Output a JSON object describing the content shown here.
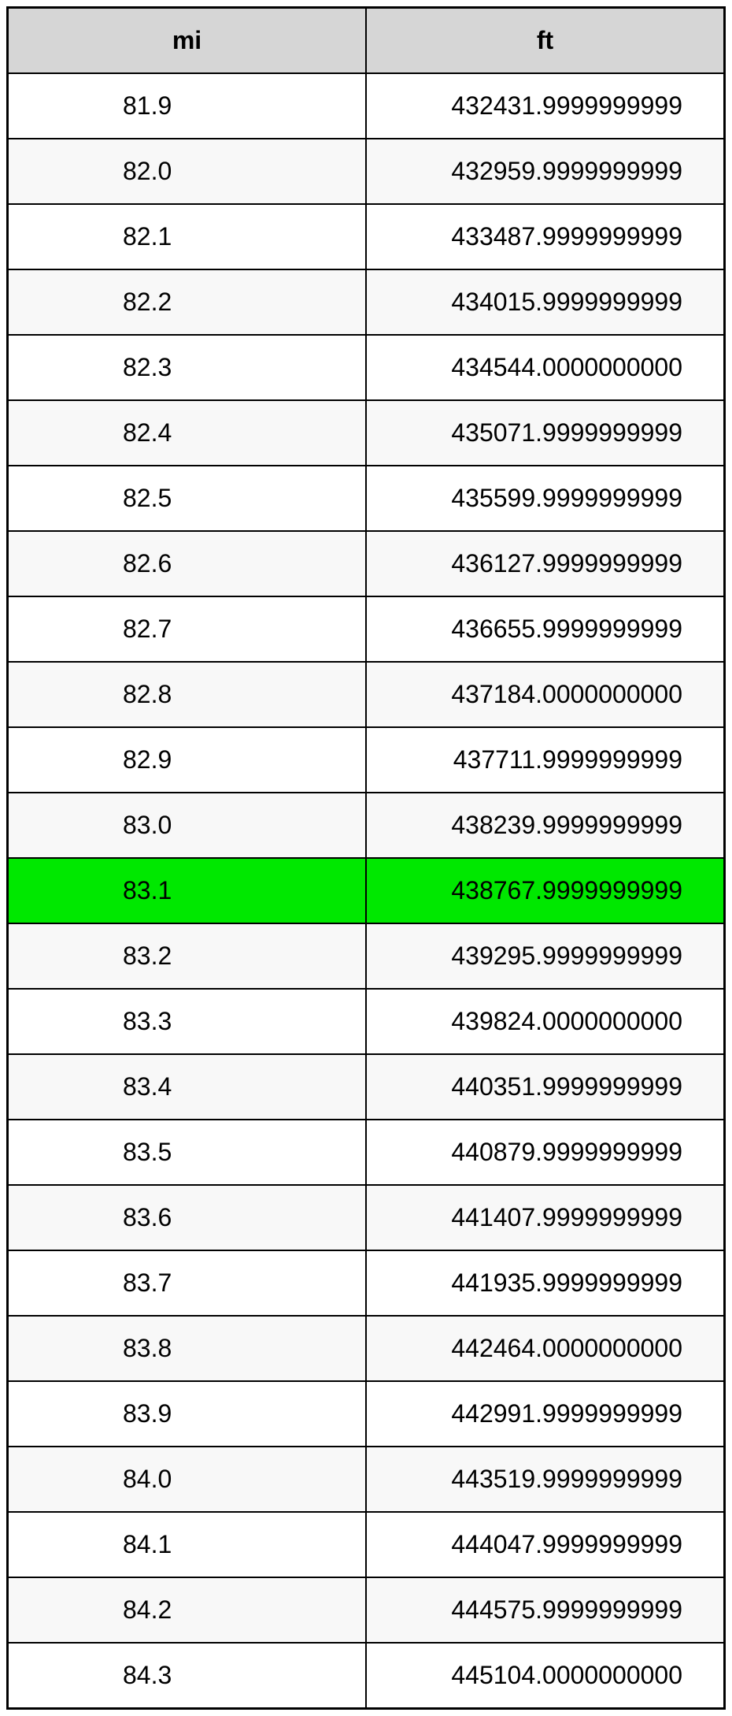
{
  "table": {
    "type": "table",
    "columns": [
      {
        "label": "mi",
        "align": "left",
        "class": "mi"
      },
      {
        "label": "ft",
        "align": "right",
        "class": "ft"
      }
    ],
    "rows": [
      {
        "mi": "81.9",
        "ft": "432431.9999999999",
        "highlight": false
      },
      {
        "mi": "82.0",
        "ft": "432959.9999999999",
        "highlight": false
      },
      {
        "mi": "82.1",
        "ft": "433487.9999999999",
        "highlight": false
      },
      {
        "mi": "82.2",
        "ft": "434015.9999999999",
        "highlight": false
      },
      {
        "mi": "82.3",
        "ft": "434544.0000000000",
        "highlight": false
      },
      {
        "mi": "82.4",
        "ft": "435071.9999999999",
        "highlight": false
      },
      {
        "mi": "82.5",
        "ft": "435599.9999999999",
        "highlight": false
      },
      {
        "mi": "82.6",
        "ft": "436127.9999999999",
        "highlight": false
      },
      {
        "mi": "82.7",
        "ft": "436655.9999999999",
        "highlight": false
      },
      {
        "mi": "82.8",
        "ft": "437184.0000000000",
        "highlight": false
      },
      {
        "mi": "82.9",
        "ft": "437711.9999999999",
        "highlight": false
      },
      {
        "mi": "83.0",
        "ft": "438239.9999999999",
        "highlight": false
      },
      {
        "mi": "83.1",
        "ft": "438767.9999999999",
        "highlight": true
      },
      {
        "mi": "83.2",
        "ft": "439295.9999999999",
        "highlight": false
      },
      {
        "mi": "83.3",
        "ft": "439824.0000000000",
        "highlight": false
      },
      {
        "mi": "83.4",
        "ft": "440351.9999999999",
        "highlight": false
      },
      {
        "mi": "83.5",
        "ft": "440879.9999999999",
        "highlight": false
      },
      {
        "mi": "83.6",
        "ft": "441407.9999999999",
        "highlight": false
      },
      {
        "mi": "83.7",
        "ft": "441935.9999999999",
        "highlight": false
      },
      {
        "mi": "83.8",
        "ft": "442464.0000000000",
        "highlight": false
      },
      {
        "mi": "83.9",
        "ft": "442991.9999999999",
        "highlight": false
      },
      {
        "mi": "84.0",
        "ft": "443519.9999999999",
        "highlight": false
      },
      {
        "mi": "84.1",
        "ft": "444047.9999999999",
        "highlight": false
      },
      {
        "mi": "84.2",
        "ft": "444575.9999999999",
        "highlight": false
      },
      {
        "mi": "84.3",
        "ft": "445104.0000000000",
        "highlight": false
      }
    ],
    "header_bg": "#d6d6d6",
    "highlight_bg": "#00e800",
    "row_even_bg": "#f8f8f8",
    "row_odd_bg": "#ffffff",
    "border_color": "#000000",
    "font_size": 32
  }
}
